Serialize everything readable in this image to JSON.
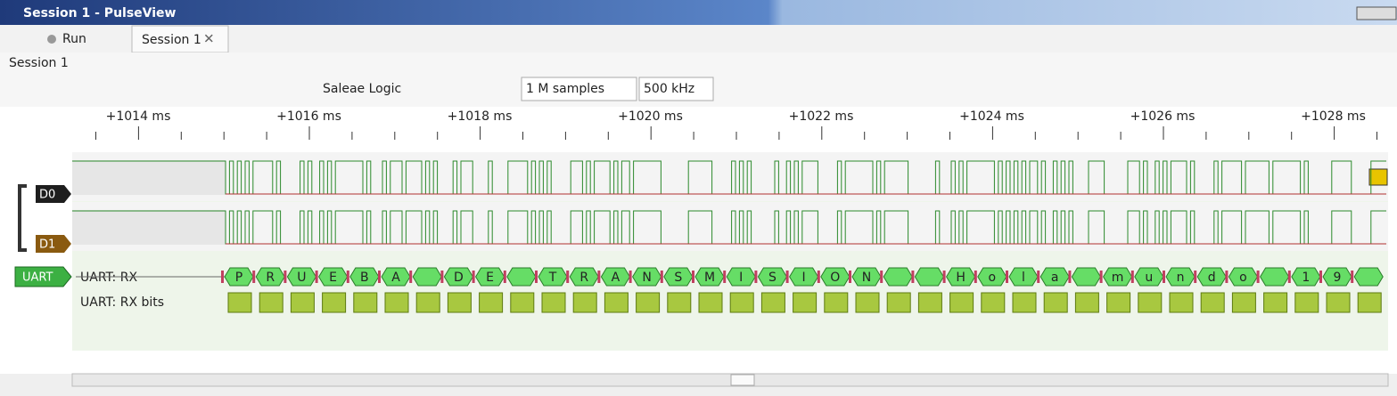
{
  "window": {
    "title": "Session 1 - PulseView"
  },
  "main_toolbar": {
    "run": "Run",
    "tab": "Session 1"
  },
  "session": {
    "label": "Session 1"
  },
  "device_toolbar": {
    "device": "Saleae Logic",
    "samples": "1 M samples",
    "rate": "500 kHz"
  },
  "ruler": {
    "labels": [
      "+1014 ms",
      "+1016 ms",
      "+1018 ms",
      "+1020 ms",
      "+1022 ms",
      "+1024 ms",
      "+1026 ms",
      "+1028 ms"
    ]
  },
  "channels": [
    "D0",
    "D1"
  ],
  "decoder": {
    "name": "UART",
    "rows": [
      "UART: RX",
      "UART: RX bits"
    ],
    "annotations": [
      "P",
      "R",
      "U",
      "E",
      "B",
      "A",
      "D",
      "E",
      "T",
      "R",
      "A",
      "N",
      "S",
      "M",
      "I",
      "S",
      "I",
      "O",
      "N",
      "H",
      "o",
      "l",
      "a",
      "m",
      "u",
      "n",
      "d",
      "o",
      "1",
      "9"
    ]
  }
}
